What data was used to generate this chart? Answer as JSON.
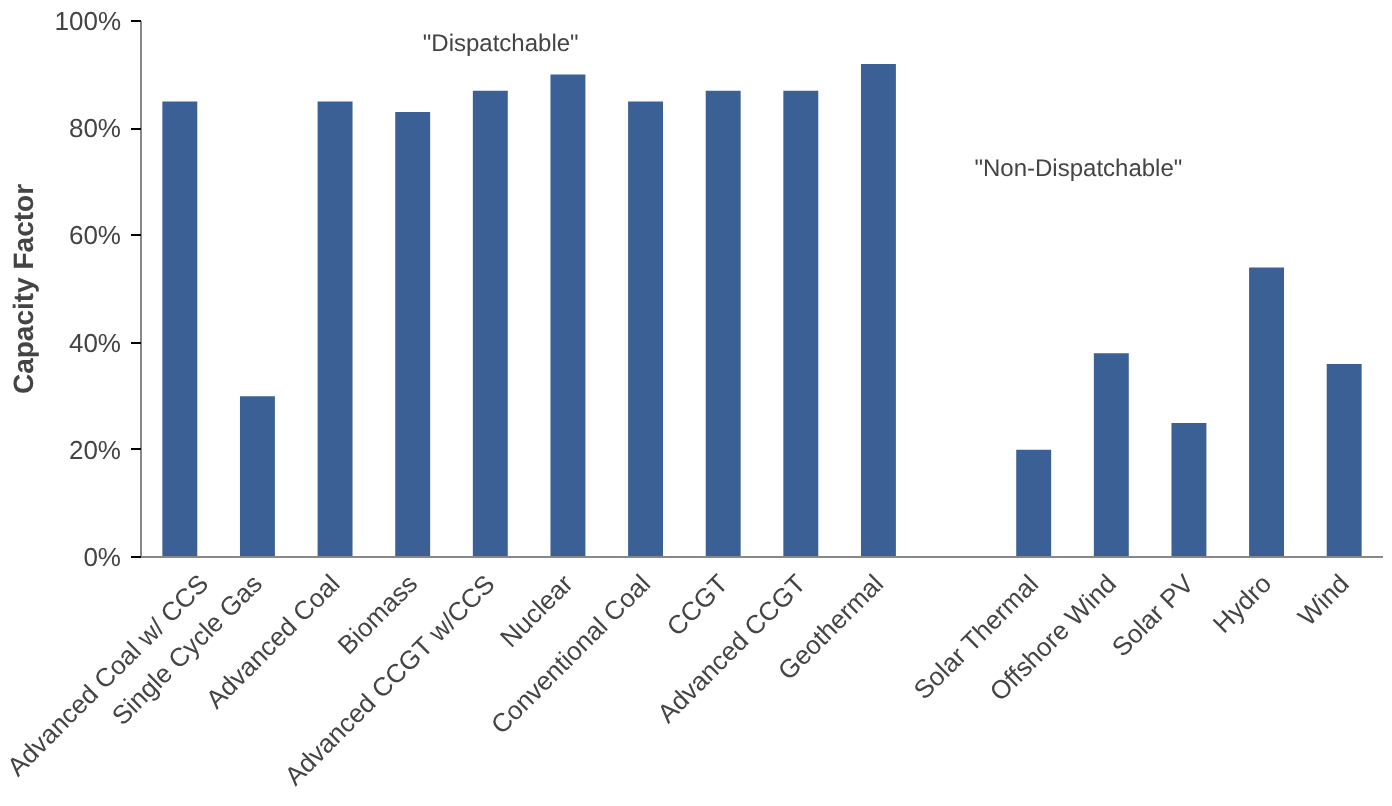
{
  "chart_data": {
    "type": "bar",
    "categories": [
      "Advanced Coal w/ CCS",
      "Single Cycle Gas",
      "Advanced Coal",
      "Biomass",
      "Advanced CCGT w/CCS",
      "Nuclear",
      "Conventional Coal",
      "CCGT",
      "Advanced CCGT",
      "Geothermal",
      null,
      "Solar Thermal",
      "Offshore Wind",
      "Solar PV",
      "Hydro",
      "Wind"
    ],
    "values": [
      85,
      30,
      85,
      83,
      87,
      90,
      85,
      87,
      87,
      92,
      null,
      20,
      38,
      25,
      54,
      36
    ],
    "color": "#3a6096",
    "ylabel": "Capacity Factor",
    "ylim": [
      0,
      100
    ],
    "yticks": [
      {
        "value": 0,
        "label": "0%"
      },
      {
        "value": 20,
        "label": "20%"
      },
      {
        "value": 40,
        "label": "40%"
      },
      {
        "value": 60,
        "label": "60%"
      },
      {
        "value": 80,
        "label": "80%"
      },
      {
        "value": 100,
        "label": "100%"
      }
    ],
    "annotations": [
      "\"Dispatchable\"",
      "\"Non-Dispatchable\""
    ],
    "grid": false
  }
}
